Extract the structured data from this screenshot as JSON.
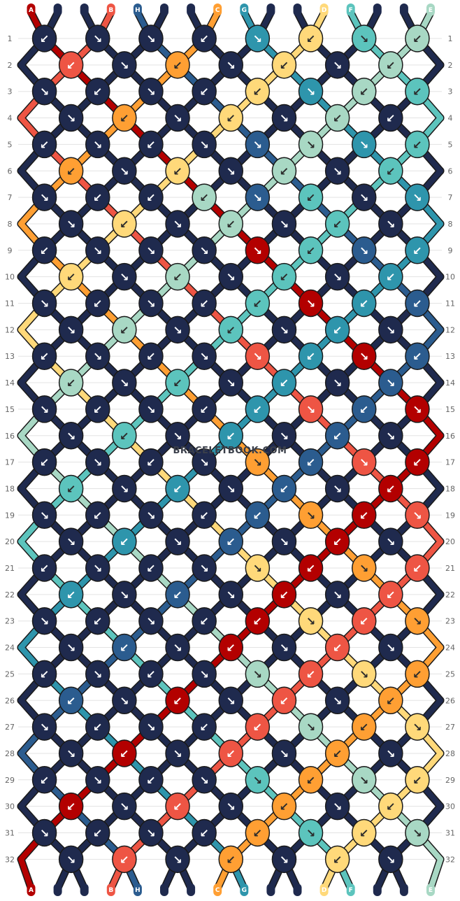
{
  "watermark": "BRACELETBOOK.COM",
  "palette": {
    "A": "#b30000",
    "B": "#ee5544",
    "C": "#ff9f33",
    "D": "#ffd97a",
    "E": "#a8d8c4",
    "F": "#5cc4bd",
    "G": "#2e95ac",
    "H": "#2b5c8f",
    "I": "#1f2a4e"
  },
  "top_strings": [
    "A",
    "I",
    "I",
    "B",
    "H",
    "I",
    "I",
    "C",
    "G",
    "I",
    "I",
    "D",
    "F",
    "I",
    "I",
    "E"
  ],
  "bottom_strings": [
    "A",
    "I",
    "I",
    "B",
    "H",
    "I",
    "I",
    "C",
    "G",
    "I",
    "I",
    "D",
    "F",
    "I",
    "I",
    "E"
  ],
  "row_numbers": [
    "1",
    "2",
    "3",
    "4",
    "5",
    "6",
    "7",
    "8",
    "9",
    "10",
    "11",
    "12",
    "13",
    "14",
    "15",
    "16",
    "17",
    "18",
    "19",
    "20",
    "21",
    "22",
    "23",
    "24",
    "25",
    "26",
    "27",
    "28",
    "29",
    "30",
    "31",
    "32"
  ],
  "knot_rows": [
    [
      {
        "c": "I",
        "d": "↙"
      },
      {
        "c": "I",
        "d": "↘"
      },
      {
        "c": "I",
        "d": "↘"
      },
      {
        "c": "I",
        "d": "↙"
      },
      {
        "c": "G",
        "d": "↘"
      },
      {
        "c": "D",
        "d": "↙"
      },
      {
        "c": "F",
        "d": "↘"
      },
      {
        "c": "E",
        "d": "↙"
      }
    ],
    [
      {
        "c": "B",
        "d": "↙"
      },
      {
        "c": "I",
        "d": "↘"
      },
      {
        "c": "C",
        "d": "↙"
      },
      {
        "c": "I",
        "d": "↘"
      },
      {
        "c": "D",
        "d": "↙"
      },
      {
        "c": "I",
        "d": "↘"
      },
      {
        "c": "E",
        "d": "↙"
      }
    ],
    [
      {
        "c": "I",
        "d": "↘"
      },
      {
        "c": "I",
        "d": "↙"
      },
      {
        "c": "I",
        "d": "↘"
      },
      {
        "c": "I",
        "d": "↙"
      },
      {
        "c": "D",
        "d": "↙"
      },
      {
        "c": "G",
        "d": "↘"
      },
      {
        "c": "E",
        "d": "↙"
      },
      {
        "c": "F",
        "d": "↙"
      }
    ],
    [
      {
        "c": "I",
        "d": "↘"
      },
      {
        "c": "C",
        "d": "↙"
      },
      {
        "c": "I",
        "d": "↘"
      },
      {
        "c": "D",
        "d": "↙"
      },
      {
        "c": "I",
        "d": "↘"
      },
      {
        "c": "E",
        "d": "↙"
      },
      {
        "c": "I",
        "d": "↙"
      }
    ],
    [
      {
        "c": "I",
        "d": "↙"
      },
      {
        "c": "I",
        "d": "↘"
      },
      {
        "c": "I",
        "d": "↙"
      },
      {
        "c": "I",
        "d": "↘"
      },
      {
        "c": "H",
        "d": "↘"
      },
      {
        "c": "E",
        "d": "↘"
      },
      {
        "c": "G",
        "d": "↘"
      },
      {
        "c": "F",
        "d": "↙"
      }
    ],
    [
      {
        "c": "C",
        "d": "↙"
      },
      {
        "c": "I",
        "d": "↘"
      },
      {
        "c": "D",
        "d": "↙"
      },
      {
        "c": "I",
        "d": "↘"
      },
      {
        "c": "E",
        "d": "↙"
      },
      {
        "c": "I",
        "d": "↘"
      },
      {
        "c": "F",
        "d": "↙"
      }
    ],
    [
      {
        "c": "I",
        "d": "↘"
      },
      {
        "c": "I",
        "d": "↙"
      },
      {
        "c": "I",
        "d": "↙"
      },
      {
        "c": "E",
        "d": "↙"
      },
      {
        "c": "H",
        "d": "↘"
      },
      {
        "c": "F",
        "d": "↙"
      },
      {
        "c": "I",
        "d": "↘"
      },
      {
        "c": "G",
        "d": "↘"
      }
    ],
    [
      {
        "c": "I",
        "d": "↘"
      },
      {
        "c": "D",
        "d": "↙"
      },
      {
        "c": "I",
        "d": "↘"
      },
      {
        "c": "E",
        "d": "↙"
      },
      {
        "c": "I",
        "d": "↘"
      },
      {
        "c": "F",
        "d": "↙"
      },
      {
        "c": "I",
        "d": "↘"
      }
    ],
    [
      {
        "c": "I",
        "d": "↙"
      },
      {
        "c": "I",
        "d": "↘"
      },
      {
        "c": "I",
        "d": "↘"
      },
      {
        "c": "I",
        "d": "↘"
      },
      {
        "c": "A",
        "d": "↘"
      },
      {
        "c": "F",
        "d": "↙"
      },
      {
        "c": "H",
        "d": "↘"
      },
      {
        "c": "G",
        "d": "↙"
      }
    ],
    [
      {
        "c": "D",
        "d": "↙"
      },
      {
        "c": "I",
        "d": "↘"
      },
      {
        "c": "E",
        "d": "↙"
      },
      {
        "c": "I",
        "d": "↘"
      },
      {
        "c": "F",
        "d": "↙"
      },
      {
        "c": "I",
        "d": "↘"
      },
      {
        "c": "G",
        "d": "↙"
      }
    ],
    [
      {
        "c": "I",
        "d": "↘"
      },
      {
        "c": "I",
        "d": "↙"
      },
      {
        "c": "I",
        "d": "↘"
      },
      {
        "c": "I",
        "d": "↙"
      },
      {
        "c": "F",
        "d": "↙"
      },
      {
        "c": "A",
        "d": "↘"
      },
      {
        "c": "G",
        "d": "↙"
      },
      {
        "c": "H",
        "d": "↙"
      }
    ],
    [
      {
        "c": "I",
        "d": "↘"
      },
      {
        "c": "E",
        "d": "↙"
      },
      {
        "c": "I",
        "d": "↘"
      },
      {
        "c": "F",
        "d": "↙"
      },
      {
        "c": "I",
        "d": "↘"
      },
      {
        "c": "G",
        "d": "↙"
      },
      {
        "c": "I",
        "d": "↘"
      }
    ],
    [
      {
        "c": "I",
        "d": "↙"
      },
      {
        "c": "I",
        "d": "↘"
      },
      {
        "c": "I",
        "d": "↙"
      },
      {
        "c": "I",
        "d": "↘"
      },
      {
        "c": "B",
        "d": "↘"
      },
      {
        "c": "G",
        "d": "↙"
      },
      {
        "c": "A",
        "d": "↘"
      },
      {
        "c": "H",
        "d": "↙"
      }
    ],
    [
      {
        "c": "E",
        "d": "↙"
      },
      {
        "c": "I",
        "d": "↘"
      },
      {
        "c": "F",
        "d": "↙"
      },
      {
        "c": "I",
        "d": "↘"
      },
      {
        "c": "G",
        "d": "↙"
      },
      {
        "c": "I",
        "d": "↘"
      },
      {
        "c": "H",
        "d": "↘"
      }
    ],
    [
      {
        "c": "I",
        "d": "↘"
      },
      {
        "c": "I",
        "d": "↙"
      },
      {
        "c": "I",
        "d": "↘"
      },
      {
        "c": "I",
        "d": "↙"
      },
      {
        "c": "G",
        "d": "↙"
      },
      {
        "c": "B",
        "d": "↘"
      },
      {
        "c": "H",
        "d": "↙"
      },
      {
        "c": "A",
        "d": "↘"
      }
    ],
    [
      {
        "c": "I",
        "d": "↘"
      },
      {
        "c": "F",
        "d": "↙"
      },
      {
        "c": "I",
        "d": "↘"
      },
      {
        "c": "G",
        "d": "↙"
      },
      {
        "c": "I",
        "d": "↘"
      },
      {
        "c": "H",
        "d": "↙"
      },
      {
        "c": "I",
        "d": "↘"
      }
    ],
    [
      {
        "c": "I",
        "d": "↙"
      },
      {
        "c": "I",
        "d": "↘"
      },
      {
        "c": "I",
        "d": "↙"
      },
      {
        "c": "I",
        "d": "↘"
      },
      {
        "c": "C",
        "d": "↘"
      },
      {
        "c": "H",
        "d": "↙"
      },
      {
        "c": "B",
        "d": "↘"
      },
      {
        "c": "A",
        "d": "↙"
      }
    ],
    [
      {
        "c": "F",
        "d": "↙"
      },
      {
        "c": "I",
        "d": "↘"
      },
      {
        "c": "G",
        "d": "↙"
      },
      {
        "c": "I",
        "d": "↘"
      },
      {
        "c": "H",
        "d": "↙"
      },
      {
        "c": "I",
        "d": "↘"
      },
      {
        "c": "A",
        "d": "↙"
      }
    ],
    [
      {
        "c": "I",
        "d": "↘"
      },
      {
        "c": "I",
        "d": "↙"
      },
      {
        "c": "I",
        "d": "↘"
      },
      {
        "c": "I",
        "d": "↙"
      },
      {
        "c": "H",
        "d": "↙"
      },
      {
        "c": "C",
        "d": "↘"
      },
      {
        "c": "A",
        "d": "↙"
      },
      {
        "c": "B",
        "d": "↘"
      }
    ],
    [
      {
        "c": "I",
        "d": "↘"
      },
      {
        "c": "G",
        "d": "↙"
      },
      {
        "c": "I",
        "d": "↘"
      },
      {
        "c": "H",
        "d": "↙"
      },
      {
        "c": "I",
        "d": "↘"
      },
      {
        "c": "A",
        "d": "↙"
      },
      {
        "c": "I",
        "d": "↘"
      }
    ],
    [
      {
        "c": "I",
        "d": "↙"
      },
      {
        "c": "I",
        "d": "↘"
      },
      {
        "c": "I",
        "d": "↙"
      },
      {
        "c": "I",
        "d": "↘"
      },
      {
        "c": "D",
        "d": "↘"
      },
      {
        "c": "A",
        "d": "↙"
      },
      {
        "c": "C",
        "d": "↘"
      },
      {
        "c": "B",
        "d": "↙"
      }
    ],
    [
      {
        "c": "G",
        "d": "↙"
      },
      {
        "c": "I",
        "d": "↘"
      },
      {
        "c": "H",
        "d": "↙"
      },
      {
        "c": "I",
        "d": "↘"
      },
      {
        "c": "A",
        "d": "↙"
      },
      {
        "c": "I",
        "d": "↘"
      },
      {
        "c": "B",
        "d": "↙"
      }
    ],
    [
      {
        "c": "I",
        "d": "↘"
      },
      {
        "c": "I",
        "d": "↙"
      },
      {
        "c": "I",
        "d": "↘"
      },
      {
        "c": "I",
        "d": "↙"
      },
      {
        "c": "A",
        "d": "↙"
      },
      {
        "c": "D",
        "d": "↘"
      },
      {
        "c": "B",
        "d": "↙"
      },
      {
        "c": "C",
        "d": "↘"
      }
    ],
    [
      {
        "c": "I",
        "d": "↘"
      },
      {
        "c": "H",
        "d": "↙"
      },
      {
        "c": "I",
        "d": "↘"
      },
      {
        "c": "A",
        "d": "↙"
      },
      {
        "c": "I",
        "d": "↘"
      },
      {
        "c": "B",
        "d": "↙"
      },
      {
        "c": "I",
        "d": "↘"
      }
    ],
    [
      {
        "c": "I",
        "d": "↙"
      },
      {
        "c": "I",
        "d": "↘"
      },
      {
        "c": "I",
        "d": "↙"
      },
      {
        "c": "I",
        "d": "↘"
      },
      {
        "c": "E",
        "d": "↘"
      },
      {
        "c": "B",
        "d": "↙"
      },
      {
        "c": "D",
        "d": "↘"
      },
      {
        "c": "C",
        "d": "↙"
      }
    ],
    [
      {
        "c": "H",
        "d": "↙"
      },
      {
        "c": "I",
        "d": "↘"
      },
      {
        "c": "A",
        "d": "↙"
      },
      {
        "c": "I",
        "d": "↘"
      },
      {
        "c": "B",
        "d": "↙"
      },
      {
        "c": "I",
        "d": "↘"
      },
      {
        "c": "C",
        "d": "↙"
      }
    ],
    [
      {
        "c": "I",
        "d": "↘"
      },
      {
        "c": "I",
        "d": "↙"
      },
      {
        "c": "I",
        "d": "↘"
      },
      {
        "c": "I",
        "d": "↙"
      },
      {
        "c": "B",
        "d": "↙"
      },
      {
        "c": "E",
        "d": "↘"
      },
      {
        "c": "C",
        "d": "↙"
      },
      {
        "c": "D",
        "d": "↘"
      }
    ],
    [
      {
        "c": "I",
        "d": "↘"
      },
      {
        "c": "A",
        "d": "↙"
      },
      {
        "c": "I",
        "d": "↘"
      },
      {
        "c": "B",
        "d": "↙"
      },
      {
        "c": "I",
        "d": "↘"
      },
      {
        "c": "C",
        "d": "↙"
      },
      {
        "c": "I",
        "d": "↘"
      }
    ],
    [
      {
        "c": "I",
        "d": "↙"
      },
      {
        "c": "I",
        "d": "↘"
      },
      {
        "c": "I",
        "d": "↙"
      },
      {
        "c": "I",
        "d": "↘"
      },
      {
        "c": "F",
        "d": "↘"
      },
      {
        "c": "C",
        "d": "↙"
      },
      {
        "c": "E",
        "d": "↘"
      },
      {
        "c": "D",
        "d": "↙"
      }
    ],
    [
      {
        "c": "A",
        "d": "↙"
      },
      {
        "c": "I",
        "d": "↘"
      },
      {
        "c": "B",
        "d": "↙"
      },
      {
        "c": "I",
        "d": "↘"
      },
      {
        "c": "C",
        "d": "↙"
      },
      {
        "c": "I",
        "d": "↘"
      },
      {
        "c": "D",
        "d": "↙"
      }
    ],
    [
      {
        "c": "I",
        "d": "↘"
      },
      {
        "c": "I",
        "d": "↙"
      },
      {
        "c": "I",
        "d": "↘"
      },
      {
        "c": "I",
        "d": "↙"
      },
      {
        "c": "C",
        "d": "↙"
      },
      {
        "c": "F",
        "d": "↘"
      },
      {
        "c": "D",
        "d": "↙"
      },
      {
        "c": "E",
        "d": "↘"
      }
    ],
    [
      {
        "c": "I",
        "d": "↘"
      },
      {
        "c": "B",
        "d": "↙"
      },
      {
        "c": "I",
        "d": "↘"
      },
      {
        "c": "C",
        "d": "↙"
      },
      {
        "c": "I",
        "d": "↘"
      },
      {
        "c": "D",
        "d": "↙"
      },
      {
        "c": "I",
        "d": "↘"
      }
    ]
  ]
}
